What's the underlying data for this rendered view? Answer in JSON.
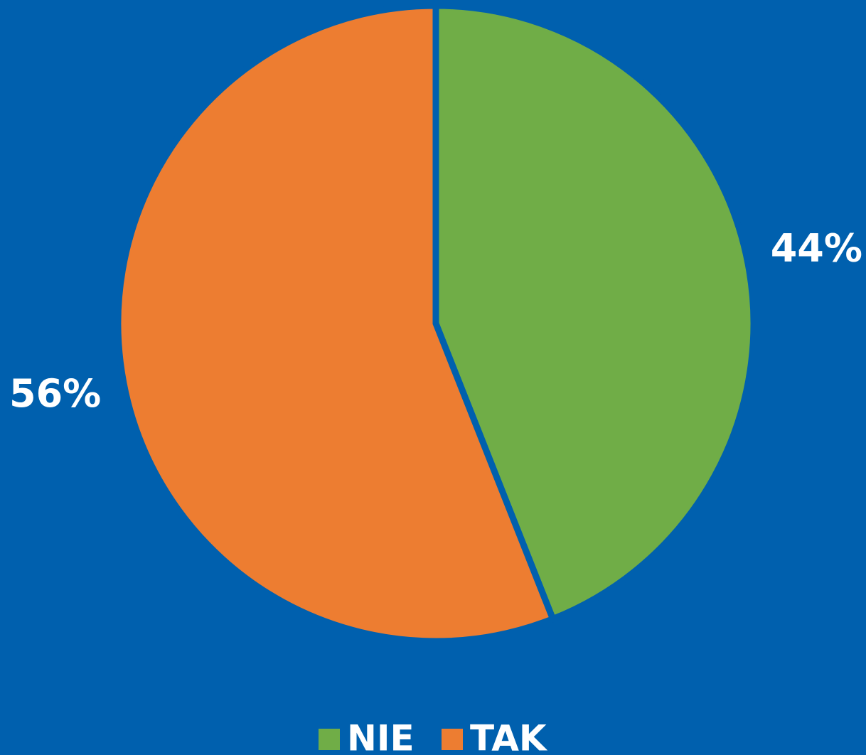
{
  "chart_data": {
    "type": "pie",
    "categories": [
      "NIE",
      "TAK"
    ],
    "values": [
      44,
      56
    ],
    "value_labels": [
      "44%",
      "56%"
    ],
    "colors": [
      "#70AD47",
      "#ED7D31"
    ],
    "legend": "bottom"
  }
}
